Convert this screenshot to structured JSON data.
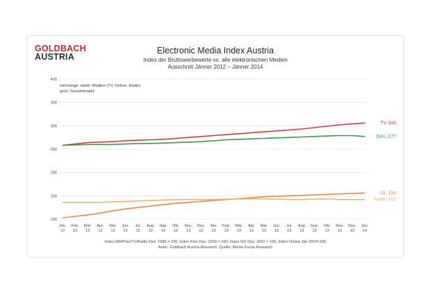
{
  "brand": {
    "line1": "GOLDBACH",
    "line2": "AUSTRIA"
  },
  "footnotes": [
    "Index AW/Print/TV/Radio Dez. 1995 = 100; Index Kino Dez. 2000 = 100; Index GG Dez. 2002 = 100; Index Online Jän 2010=100",
    "Autor: Goldbach Austria Research, Quelle: Media Focus Research"
  ],
  "colors": {
    "tv": "#d5373f",
    "ges": "#3a9a48",
    "ol": "#e8874a",
    "radio": "#f1b25a",
    "brand_red": "#c0272d"
  },
  "chart_data": {
    "type": "line",
    "title": "Electronic Media Index Austria",
    "subtitle": [
      "Index der Bruttowerbewerte vs. alle elektronischen Medien",
      "Ausschnitt Jänner 2012 –  Jänner 2014"
    ],
    "annotation": [
      "rot/orange: elektr. Medien (TV, Online, Radio)",
      "grün: Gesamtmarkt"
    ],
    "ylim": [
      100,
      400
    ],
    "yticks": [
      100,
      150,
      200,
      250,
      300,
      350,
      400
    ],
    "categories": [
      [
        "Jän.",
        "12"
      ],
      [
        "Feb.",
        "12"
      ],
      [
        "Mär.",
        "12"
      ],
      [
        "Apr.",
        "12"
      ],
      [
        "Mai.",
        "12"
      ],
      [
        "Jun.",
        "12"
      ],
      [
        "Jul.",
        "12"
      ],
      [
        "Aug.",
        "12"
      ],
      [
        "Sep.",
        "12"
      ],
      [
        "Okt.",
        "12"
      ],
      [
        "Nov.",
        "12"
      ],
      [
        "Dez.",
        "12"
      ],
      [
        "Jän.",
        "13"
      ],
      [
        "Feb.",
        "13"
      ],
      [
        "Mär.",
        "13"
      ],
      [
        "Apr.",
        "13"
      ],
      [
        "Mai.",
        "13"
      ],
      [
        "Jun.",
        "13"
      ],
      [
        "Jul.",
        "13"
      ],
      [
        "Aug.",
        "13"
      ],
      [
        "Sep.",
        "13"
      ],
      [
        "Okt.",
        "13"
      ],
      [
        "Nov.",
        "13"
      ],
      [
        "Dez.",
        "13"
      ],
      [
        "Jän.",
        "14"
      ]
    ],
    "series": [
      {
        "name": "TV",
        "label": "TV  306",
        "color": "#d5373f",
        "values": [
          258,
          261,
          264,
          265,
          266,
          268,
          269,
          270,
          271,
          273,
          275,
          277,
          279,
          281,
          283,
          285,
          287,
          289,
          291,
          293,
          296,
          299,
          302,
          304,
          306
        ]
      },
      {
        "name": "Ges.",
        "label": "Ges. 277",
        "color": "#3a9a48",
        "values": [
          258,
          259,
          260,
          260,
          260,
          261,
          262,
          262,
          263,
          264,
          265,
          266,
          268,
          270,
          271,
          272,
          273,
          274,
          275,
          276,
          277,
          278,
          279,
          279,
          277
        ]
      },
      {
        "name": "OL",
        "label": "OL 156",
        "color": "#e8874a",
        "values": [
          103,
          106,
          109,
          113,
          118,
          122,
          125,
          128,
          131,
          134,
          136,
          138,
          140,
          142,
          144,
          146,
          148,
          149,
          150,
          151,
          152,
          153,
          154,
          155,
          156
        ]
      },
      {
        "name": "Radio",
        "label": "Radio 142",
        "color": "#f1b25a",
        "values": [
          136,
          136,
          136,
          136,
          137,
          138,
          139,
          140,
          141,
          142,
          142,
          142,
          142,
          143,
          143,
          144,
          143,
          143,
          142,
          142,
          143,
          143,
          142,
          142,
          142
        ]
      }
    ]
  }
}
